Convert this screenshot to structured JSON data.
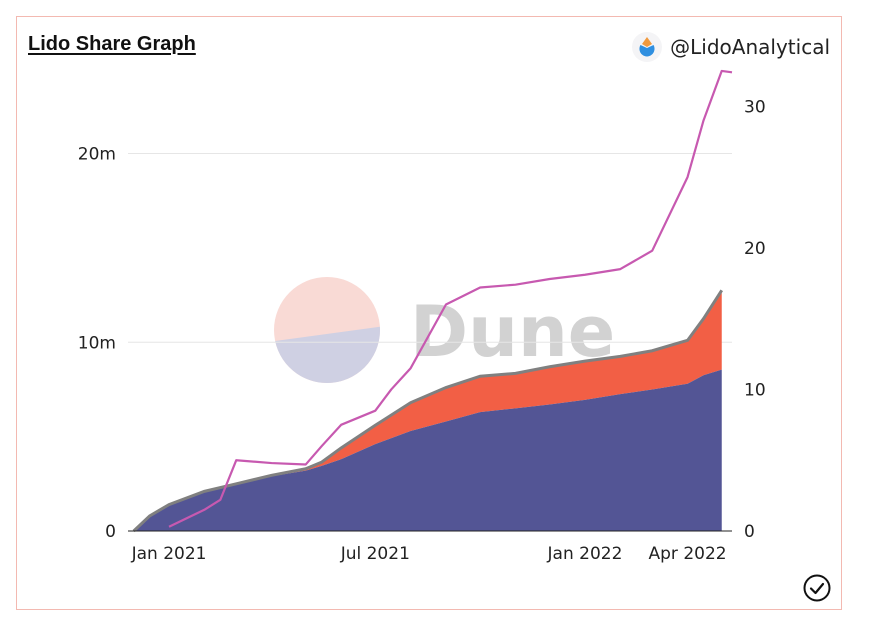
{
  "title": "Lido Share Graph",
  "author": "@LidoAnalytical",
  "watermark": "Dune",
  "icons": {
    "author_logo": "lido-drop-icon",
    "status": "check-circle-icon"
  },
  "colors": {
    "bottom_area": "#535595",
    "top_area": "#f25f45",
    "boundary": "#808080",
    "line": "#c759b0"
  },
  "chart_data": {
    "type": "area",
    "title": "Lido Share Graph",
    "xlabel": "",
    "ylabel_left": "",
    "ylabel_right": "",
    "grid": true,
    "x_ticks": [
      "Jan 2021",
      "Jul 2021",
      "Jan 2022",
      "Apr 2022"
    ],
    "y_left_ticks": [
      "0",
      "10m",
      "20m"
    ],
    "y_right_ticks": [
      "0",
      "10",
      "20",
      "30"
    ],
    "y_left_range": [
      0,
      24000000
    ],
    "y_right_range": [
      0,
      32
    ],
    "x": [
      "2020-12-01",
      "2020-12-15",
      "2021-01-01",
      "2021-02-01",
      "2021-03-01",
      "2021-04-01",
      "2021-05-01",
      "2021-05-15",
      "2021-06-01",
      "2021-07-01",
      "2021-08-01",
      "2021-09-01",
      "2021-10-01",
      "2021-11-01",
      "2021-12-01",
      "2022-01-01",
      "2022-02-01",
      "2022-03-01",
      "2022-04-01",
      "2022-04-15",
      "2022-05-01"
    ],
    "series": [
      {
        "axis": "left",
        "stack": "share",
        "values": [
          0,
          800000,
          1400000,
          2100000,
          2500000,
          2900000,
          3200000,
          3450000,
          3800000,
          4600000,
          5300000,
          5800000,
          6300000,
          6500000,
          6700000,
          6950000,
          7250000,
          7500000,
          7800000,
          8250000,
          8550000
        ]
      },
      {
        "axis": "left",
        "stack": "share",
        "values": [
          0,
          0,
          0,
          0,
          0,
          50000,
          100000,
          200000,
          600000,
          1000000,
          1500000,
          1800000,
          1900000,
          1850000,
          2000000,
          2050000,
          2000000,
          2050000,
          2300000,
          3000000,
          4200000
        ]
      },
      {
        "axis": "right",
        "type": "line",
        "x": [
          "2021-01-01",
          "2021-02-01",
          "2021-02-15",
          "2021-03-01",
          "2021-04-01",
          "2021-05-01",
          "2021-05-15",
          "2021-06-01",
          "2021-07-01",
          "2021-07-15",
          "2021-08-01",
          "2021-09-01",
          "2021-10-01",
          "2021-11-01",
          "2021-12-01",
          "2022-01-01",
          "2022-02-01",
          "2022-03-01",
          "2022-04-01",
          "2022-04-15",
          "2022-05-01",
          "2022-05-10"
        ],
        "values": [
          0.3,
          1.5,
          2.2,
          5.0,
          4.8,
          4.7,
          6.0,
          7.5,
          8.5,
          10.0,
          11.5,
          16.0,
          17.2,
          17.4,
          17.8,
          18.1,
          18.5,
          19.8,
          25.0,
          29.0,
          32.5,
          32.4
        ]
      }
    ]
  }
}
